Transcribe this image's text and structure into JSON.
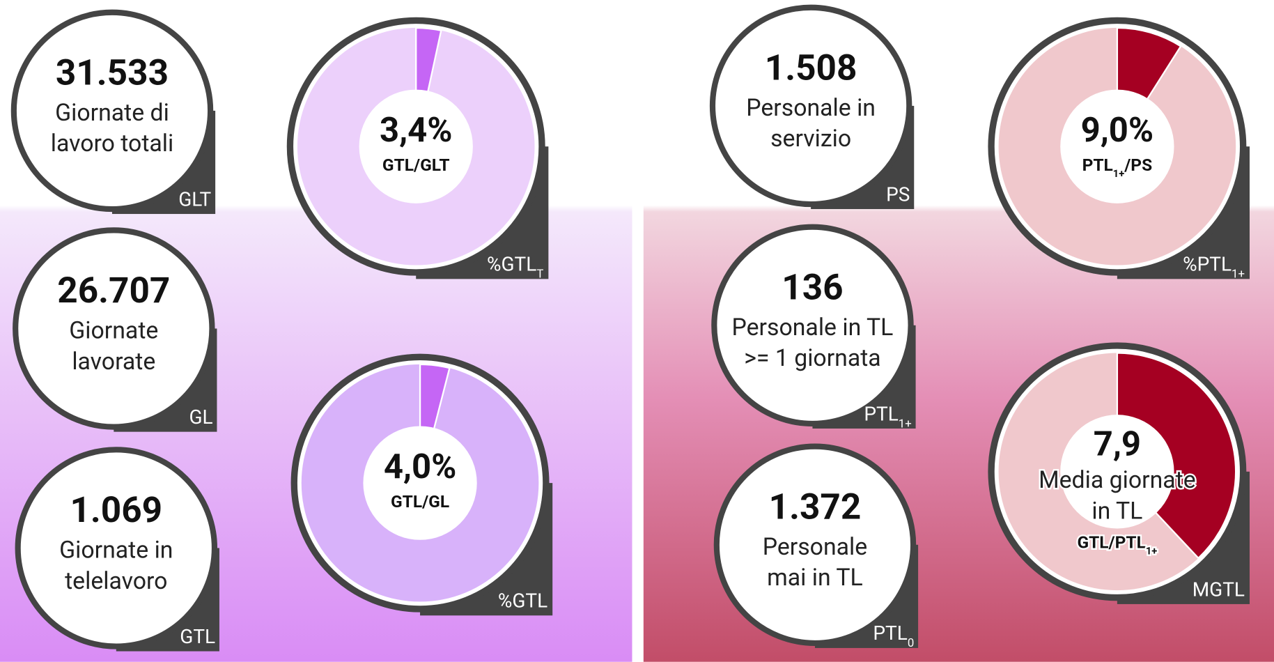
{
  "cards": [
    {
      "value": "31.533",
      "lines": [
        "Giornate di",
        "lavoro totali"
      ],
      "tag": {
        "text": "GLT"
      }
    },
    {
      "value": "26.707",
      "lines": [
        "Giornate",
        "lavorate"
      ],
      "tag": {
        "text": "GL"
      }
    },
    {
      "value": "1.069",
      "lines": [
        "Giornate in",
        "telelavoro"
      ],
      "tag": {
        "text": "GTL"
      }
    },
    {
      "value": "1.508",
      "lines": [
        "Personale in",
        "servizio"
      ],
      "tag": {
        "text": "PS"
      }
    },
    {
      "value": "136",
      "lines": [
        "Personale in TL",
        ">= 1 giornata"
      ],
      "tag": {
        "text": "PTL",
        "sub": "1+"
      }
    },
    {
      "value": "1.372",
      "lines": [
        "Personale",
        "mai in TL"
      ],
      "tag": {
        "text": "PTL",
        "sub": "0"
      }
    }
  ],
  "donuts": [
    {
      "value": 3.4,
      "label": "3,4%",
      "ratio": {
        "text": "GTL/GLT"
      },
      "tag": {
        "text": "%GTL",
        "sub": "T"
      },
      "color": "#c566f5",
      "background": "#ecd0fb"
    },
    {
      "value": 4.0,
      "label": "4,0%",
      "ratio": {
        "text": "GTL/GL"
      },
      "tag": {
        "text": "%GTL"
      },
      "color": "#c566f5",
      "background": "#d8b2fa"
    },
    {
      "value": 9.0,
      "label": "9,0%",
      "ratio": {
        "text": "PTL",
        "sub": "1+",
        "after": "/PS"
      },
      "tag": {
        "text": "%PTL",
        "sub": "1+"
      },
      "color": "#a50022",
      "background": "#f0c8cc"
    },
    {
      "value": 38,
      "label": "7,9",
      "lines": [
        "Media giornate",
        "in TL"
      ],
      "ratio": {
        "text": "GTL/PTL",
        "sub": "1+"
      },
      "tag": {
        "text": "MGTL"
      },
      "color": "#a50022",
      "background": "#f0c8cc"
    }
  ]
}
